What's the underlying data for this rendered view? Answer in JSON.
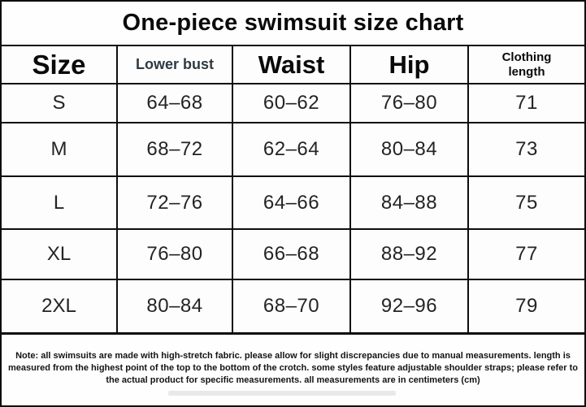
{
  "title": "One-piece swimsuit size chart",
  "table": {
    "columns": {
      "size": "Size",
      "lower_bust": "Lower bust",
      "waist": "Waist",
      "hip": "Hip",
      "clothing_length": "Clothing length"
    },
    "rows": [
      {
        "size": "S",
        "lower_bust": "64–68",
        "waist": "60–62",
        "hip": "76–80",
        "clothing_length": "71"
      },
      {
        "size": "M",
        "lower_bust": "68–72",
        "waist": "62–64",
        "hip": "80–84",
        "clothing_length": "73"
      },
      {
        "size": "L",
        "lower_bust": "72–76",
        "waist": "64–66",
        "hip": "84–88",
        "clothing_length": "75"
      },
      {
        "size": "XL",
        "lower_bust": "76–80",
        "waist": "66–68",
        "hip": "88–92",
        "clothing_length": "77"
      },
      {
        "size": "2XL",
        "lower_bust": "80–84",
        "waist": "68–70",
        "hip": "92–96",
        "clothing_length": "79"
      }
    ]
  },
  "note": "Note: all swimsuits are made with high-stretch fabric. please allow for slight discrepancies due to manual measurements. length is measured from the highest point of the top to the bottom of the crotch. some styles feature adjustable shoulder straps; please refer to the actual product for specific measurements. all measurements are in centimeters (cm)",
  "units": "cm",
  "colors": {
    "border": "#0d0d0d",
    "background": "#fefefe",
    "header_text": "#0a0a0a",
    "subheader_text": "#2e3a42",
    "data_text": "#242424"
  }
}
